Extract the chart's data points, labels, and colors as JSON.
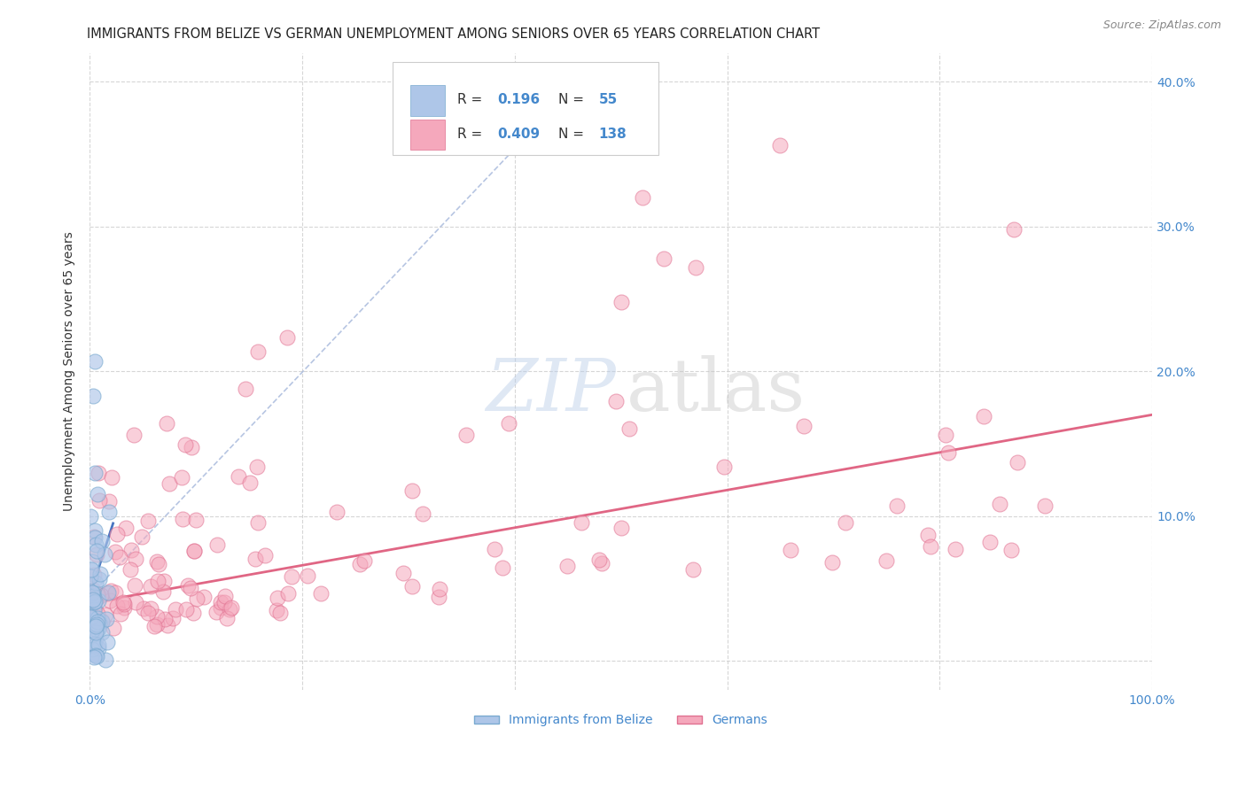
{
  "title": "IMMIGRANTS FROM BELIZE VS GERMAN UNEMPLOYMENT AMONG SENIORS OVER 65 YEARS CORRELATION CHART",
  "source": "Source: ZipAtlas.com",
  "ylabel": "Unemployment Among Seniors over 65 years",
  "xlim": [
    0,
    1.0
  ],
  "ylim": [
    -0.02,
    0.42
  ],
  "x_ticks": [
    0.0,
    0.2,
    0.4,
    0.6,
    0.8,
    1.0
  ],
  "y_ticks": [
    0.0,
    0.1,
    0.2,
    0.3,
    0.4
  ],
  "right_y_tick_labels": [
    "",
    "10.0%",
    "20.0%",
    "30.0%",
    "40.0%"
  ],
  "belize_R": 0.196,
  "belize_N": 55,
  "german_R": 0.409,
  "german_N": 138,
  "belize_color": "#aec6e8",
  "belize_edge_color": "#7aaad0",
  "german_color": "#f5a8bc",
  "german_edge_color": "#e07090",
  "belize_line_color": "#3366bb",
  "belize_dash_color": "#aabbdd",
  "german_line_color": "#dd5577",
  "background_color": "#ffffff",
  "grid_color": "#cccccc",
  "title_color": "#222222",
  "axis_label_color": "#333333",
  "tick_label_color": "#4488cc",
  "figsize": [
    14.06,
    8.92
  ],
  "dpi": 100
}
